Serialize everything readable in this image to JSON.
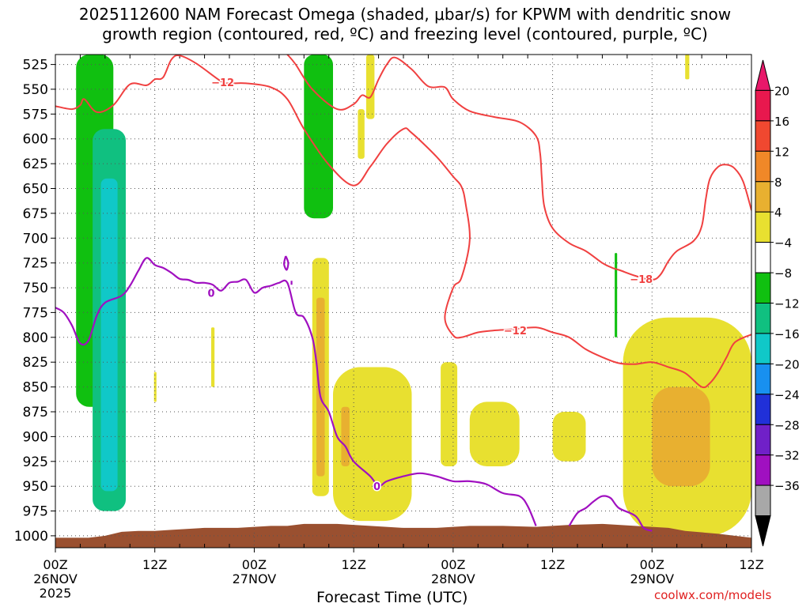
{
  "title": "2025112600 NAM Forecast Omega (shaded, μbar/s) for KPWM with dendritic snow\ngrowth region (contoured, red, ºC) and freezing level (contoured, purple, ºC)",
  "credit": "coolwx.com/models",
  "chart_data": {
    "type": "heatmap",
    "title": "2025112600 NAM Forecast Omega (shaded, μbar/s) for KPWM with dendritic snow growth region (contoured, red, ºC) and freezing level (contoured, purple, ºC)",
    "xlabel": "Forecast Time (UTC)",
    "ylabel": "",
    "x_unit": "forecast hour",
    "xlim": [
      0,
      84
    ],
    "ylim": [
      1012,
      515
    ],
    "y_scale": "pressure (hPa), increasing downward",
    "grid": true,
    "x_ticks": [
      {
        "hour": 0,
        "label": "00Z",
        "sub": "26NOV",
        "sub2": "2025"
      },
      {
        "hour": 12,
        "label": "12Z",
        "sub": "",
        "sub2": ""
      },
      {
        "hour": 24,
        "label": "00Z",
        "sub": "27NOV",
        "sub2": ""
      },
      {
        "hour": 36,
        "label": "12Z",
        "sub": "",
        "sub2": ""
      },
      {
        "hour": 48,
        "label": "00Z",
        "sub": "28NOV",
        "sub2": ""
      },
      {
        "hour": 60,
        "label": "12Z",
        "sub": "",
        "sub2": ""
      },
      {
        "hour": 72,
        "label": "00Z",
        "sub": "29NOV",
        "sub2": ""
      },
      {
        "hour": 84,
        "label": "12Z",
        "sub": "",
        "sub2": ""
      }
    ],
    "y_ticks": [
      525,
      550,
      575,
      600,
      625,
      650,
      675,
      700,
      725,
      750,
      775,
      800,
      825,
      850,
      875,
      900,
      925,
      950,
      975,
      1000
    ],
    "colorbar": {
      "labels": [
        "20",
        "16",
        "12",
        "8",
        "4",
        "−4",
        "−8",
        "−12",
        "−16",
        "−20",
        "−24",
        "−28",
        "−32",
        "−36"
      ],
      "bins": [
        {
          "color": "#e8186a"
        },
        {
          "color": "#e8184e"
        },
        {
          "color": "#f04830"
        },
        {
          "color": "#f08828"
        },
        {
          "color": "#e8b030"
        },
        {
          "color": "#e8e030"
        },
        {
          "color": "#ffffff"
        },
        {
          "color": "#10c010"
        },
        {
          "color": "#10c080"
        },
        {
          "color": "#10c8c8"
        },
        {
          "color": "#1890f0"
        },
        {
          "color": "#2030d8"
        },
        {
          "color": "#7020c8"
        },
        {
          "color": "#a010c0"
        },
        {
          "color": "#a8a8a8"
        },
        {
          "color": "#000000"
        }
      ]
    },
    "omega_regions": [
      {
        "value": -8,
        "color": "#10c010",
        "hour0": 2.5,
        "hour1": 7.0,
        "p_top": 515,
        "p_bottom": 870
      },
      {
        "value": -12,
        "color": "#10c080",
        "hour0": 4.5,
        "hour1": 8.5,
        "p_top": 590,
        "p_bottom": 975
      },
      {
        "value": -16,
        "color": "#10c8c8",
        "hour0": 5.5,
        "hour1": 7.5,
        "p_top": 640,
        "p_bottom": 955
      },
      {
        "value": -8,
        "color": "#10c010",
        "hour0": 30.0,
        "hour1": 33.5,
        "p_top": 515,
        "p_bottom": 680
      },
      {
        "value": -8,
        "color": "#10c010",
        "hour0": 67.5,
        "hour1": 67.8,
        "p_top": 715,
        "p_bottom": 800
      },
      {
        "value": 4,
        "color": "#e8e030",
        "hour0": 31.0,
        "hour1": 33.0,
        "p_top": 720,
        "p_bottom": 960
      },
      {
        "value": 8,
        "color": "#e8b030",
        "hour0": 31.5,
        "hour1": 32.5,
        "p_top": 760,
        "p_bottom": 940
      },
      {
        "value": 4,
        "color": "#e8e030",
        "hour0": 33.5,
        "hour1": 43.0,
        "p_top": 830,
        "p_bottom": 985
      },
      {
        "value": 8,
        "color": "#e8b030",
        "hour0": 34.5,
        "hour1": 35.5,
        "p_top": 870,
        "p_bottom": 930
      },
      {
        "value": 4,
        "color": "#e8e030",
        "hour0": 46.5,
        "hour1": 48.5,
        "p_top": 825,
        "p_bottom": 930
      },
      {
        "value": 4,
        "color": "#e8e030",
        "hour0": 50.0,
        "hour1": 56.0,
        "p_top": 865,
        "p_bottom": 930
      },
      {
        "value": 4,
        "color": "#e8e030",
        "hour0": 60.0,
        "hour1": 64.0,
        "p_top": 875,
        "p_bottom": 925
      },
      {
        "value": 4,
        "color": "#e8e030",
        "hour0": 68.5,
        "hour1": 84.0,
        "p_top": 780,
        "p_bottom": 1000
      },
      {
        "value": 8,
        "color": "#e8b030",
        "hour0": 72.0,
        "hour1": 79.0,
        "p_top": 850,
        "p_bottom": 950
      },
      {
        "value": 4,
        "color": "#e8e030",
        "hour0": 37.5,
        "hour1": 38.5,
        "p_top": 515,
        "p_bottom": 580
      },
      {
        "value": 4,
        "color": "#e8e030",
        "hour0": 36.5,
        "hour1": 37.3,
        "p_top": 570,
        "p_bottom": 620
      },
      {
        "value": 4,
        "color": "#e8e030",
        "hour0": 76.0,
        "hour1": 76.5,
        "p_top": 515,
        "p_bottom": 540
      },
      {
        "value": 4,
        "color": "#e8e030",
        "hour0": 18.8,
        "hour1": 19.2,
        "p_top": 790,
        "p_bottom": 850
      },
      {
        "value": 4,
        "color": "#e8e030",
        "hour0": 11.9,
        "hour1": 12.2,
        "p_top": 835,
        "p_bottom": 865
      }
    ],
    "dgz_contours": [
      {
        "label": "−12",
        "color": "#f04040",
        "points": [
          [
            0,
            567
          ],
          [
            2,
            570
          ],
          [
            3,
            566
          ],
          [
            3.5,
            560
          ],
          [
            5,
            573
          ],
          [
            7,
            566
          ],
          [
            9,
            545
          ],
          [
            11,
            546
          ],
          [
            12,
            540
          ],
          [
            13,
            538
          ],
          [
            14,
            520
          ],
          [
            15,
            516
          ],
          [
            17,
            524
          ],
          [
            20,
            542
          ],
          [
            21,
            544
          ],
          [
            23,
            544
          ],
          [
            26,
            548
          ],
          [
            28,
            560
          ],
          [
            30,
            590
          ],
          [
            33,
            626
          ],
          [
            36,
            647
          ],
          [
            38,
            628
          ],
          [
            40,
            605
          ],
          [
            42,
            590
          ],
          [
            43,
            594
          ],
          [
            46,
            618
          ],
          [
            48,
            638
          ],
          [
            49,
            648
          ],
          [
            49.5,
            665
          ],
          [
            50,
            702
          ],
          [
            49,
            740
          ],
          [
            48,
            750
          ],
          [
            47,
            780
          ],
          [
            48,
            798
          ],
          [
            49,
            800
          ],
          [
            51,
            795
          ],
          [
            53,
            793
          ],
          [
            55,
            792
          ],
          [
            58,
            790
          ],
          [
            60,
            795
          ],
          [
            62,
            800
          ],
          [
            64,
            812
          ],
          [
            66,
            820
          ],
          [
            68,
            826
          ],
          [
            70,
            827
          ],
          [
            72,
            825
          ],
          [
            74,
            830
          ],
          [
            76,
            836
          ],
          [
            78,
            850
          ],
          [
            79,
            846
          ],
          [
            80,
            835
          ],
          [
            81,
            820
          ],
          [
            82,
            805
          ],
          [
            84,
            797
          ]
        ]
      },
      {
        "label": "−12",
        "color": "#f04040",
        "points": [
          [
            28,
            515
          ],
          [
            29,
            525
          ],
          [
            31,
            550
          ],
          [
            34,
            570
          ],
          [
            36,
            565
          ],
          [
            37,
            556
          ],
          [
            38,
            558
          ],
          [
            39,
            540
          ],
          [
            40,
            525
          ],
          [
            41,
            518
          ],
          [
            43,
            530
          ],
          [
            45,
            547
          ],
          [
            47,
            548
          ],
          [
            48,
            560
          ],
          [
            50,
            572
          ],
          [
            53,
            578
          ],
          [
            56,
            583
          ],
          [
            58,
            597
          ],
          [
            58.5,
            615
          ],
          [
            58.7,
            640
          ],
          [
            59,
            668
          ],
          [
            60,
            690
          ],
          [
            62,
            705
          ],
          [
            64,
            713
          ],
          [
            66,
            725
          ],
          [
            67.2,
            730
          ],
          [
            68,
            732
          ],
          [
            70,
            738
          ],
          [
            72,
            742
          ],
          [
            73,
            737
          ],
          [
            74,
            723
          ],
          [
            75,
            713
          ],
          [
            77,
            703
          ],
          [
            78,
            688
          ],
          [
            78.5,
            660
          ],
          [
            79,
            640
          ],
          [
            80,
            628
          ],
          [
            81,
            626
          ],
          [
            82,
            630
          ],
          [
            83,
            643
          ],
          [
            84,
            672
          ]
        ]
      }
    ],
    "dgz_labels": [
      {
        "text": "−12",
        "hour": 20.2,
        "p": 543
      },
      {
        "text": "−12",
        "hour": 55.5,
        "p": 793
      },
      {
        "text": "−18",
        "hour": 70.7,
        "p": 741
      }
    ],
    "freezing_contours": [
      {
        "label": "0",
        "color": "#a010c0",
        "points": [
          [
            0,
            770
          ],
          [
            1,
            775
          ],
          [
            2,
            788
          ],
          [
            3,
            806
          ],
          [
            4,
            803
          ],
          [
            5,
            778
          ],
          [
            6,
            765
          ],
          [
            8,
            758
          ],
          [
            9,
            748
          ],
          [
            10,
            733
          ],
          [
            11,
            720
          ],
          [
            12,
            727
          ],
          [
            13,
            730
          ],
          [
            14,
            735
          ],
          [
            15,
            741
          ],
          [
            16,
            742
          ],
          [
            17,
            745
          ],
          [
            18,
            745
          ],
          [
            19,
            747
          ],
          [
            20,
            753
          ],
          [
            21,
            745
          ],
          [
            22,
            744
          ],
          [
            23,
            742
          ],
          [
            24,
            755
          ],
          [
            25,
            750
          ],
          [
            26,
            748
          ],
          [
            27,
            745
          ],
          [
            28,
            745
          ],
          [
            29,
            775
          ],
          [
            30,
            780
          ],
          [
            31,
            800
          ],
          [
            31.5,
            825
          ],
          [
            32,
            860
          ],
          [
            33,
            875
          ],
          [
            34,
            900
          ],
          [
            35,
            910
          ],
          [
            36,
            925
          ],
          [
            38,
            940
          ],
          [
            39,
            950
          ],
          [
            40,
            945
          ],
          [
            42,
            940
          ],
          [
            44,
            937
          ],
          [
            46,
            940
          ],
          [
            48,
            945
          ],
          [
            50,
            945
          ],
          [
            52,
            948
          ],
          [
            54,
            957
          ],
          [
            56,
            960
          ],
          [
            57,
            970
          ],
          [
            58,
            990
          ]
        ]
      },
      {
        "label": "",
        "color": "#a010c0",
        "points": [
          [
            62,
            990
          ],
          [
            63,
            977
          ],
          [
            64,
            972
          ],
          [
            65,
            965
          ],
          [
            66,
            960
          ],
          [
            67,
            962
          ],
          [
            68,
            972
          ],
          [
            70,
            980
          ],
          [
            71,
            992
          ],
          [
            72,
            995
          ]
        ]
      },
      {
        "label": "",
        "color": "#a010c0",
        "points": [
          [
            27.8,
            718
          ],
          [
            27.6,
            726
          ],
          [
            27.9,
            732
          ],
          [
            28.1,
            725
          ],
          [
            27.8,
            718
          ]
        ]
      },
      {
        "label": "",
        "color": "#a010c0",
        "points": [
          [
            28.5,
            743
          ],
          [
            28.5,
            747
          ]
        ]
      }
    ],
    "freezing_labels": [
      {
        "text": "0",
        "hour": 18.8,
        "p": 755
      },
      {
        "text": "0",
        "hour": 38.8,
        "p": 950
      }
    ],
    "terrain": {
      "color": "#9a5030",
      "points": [
        [
          0,
          1002
        ],
        [
          4,
          1002
        ],
        [
          6,
          1000
        ],
        [
          8,
          996
        ],
        [
          10,
          995
        ],
        [
          12,
          995
        ],
        [
          14,
          994
        ],
        [
          18,
          992
        ],
        [
          22,
          992
        ],
        [
          26,
          990
        ],
        [
          28,
          990
        ],
        [
          30,
          988
        ],
        [
          34,
          988
        ],
        [
          38,
          990
        ],
        [
          42,
          992
        ],
        [
          46,
          992
        ],
        [
          50,
          990
        ],
        [
          54,
          990
        ],
        [
          58,
          991
        ],
        [
          62,
          989
        ],
        [
          66,
          988
        ],
        [
          70,
          990
        ],
        [
          74,
          992
        ],
        [
          76,
          995
        ],
        [
          80,
          998
        ],
        [
          84,
          1002
        ]
      ]
    }
  }
}
